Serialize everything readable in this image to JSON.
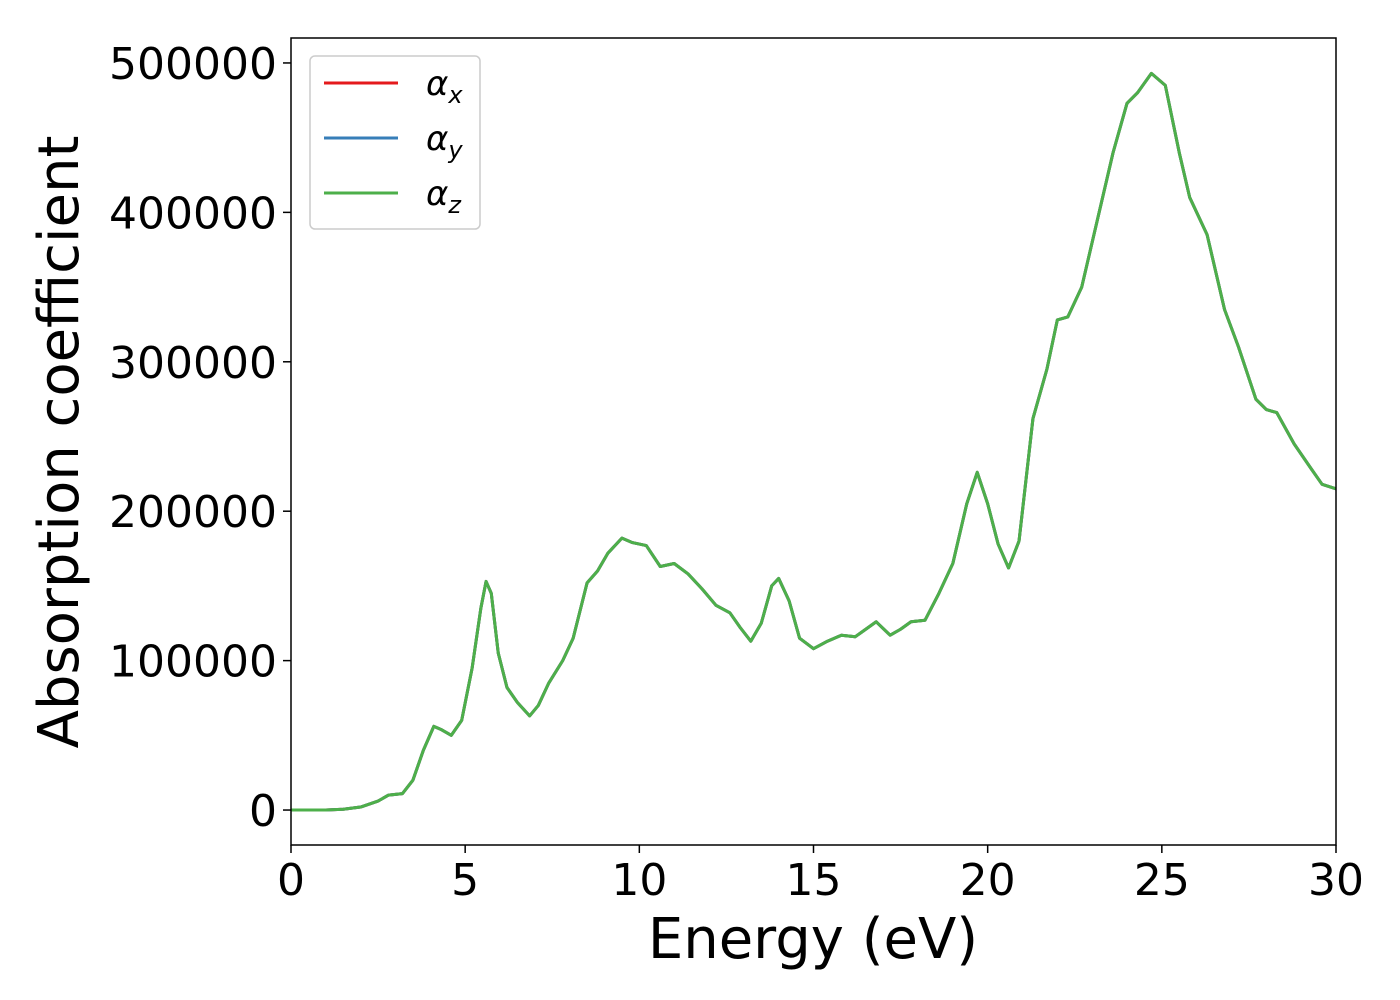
{
  "chart_data": {
    "type": "line",
    "xlabel": "Energy (eV)",
    "ylabel": "Absorption coefficient",
    "x": [
      0,
      1,
      1.5,
      2,
      2.5,
      2.8,
      3.2,
      3.5,
      3.8,
      4.1,
      4.3,
      4.6,
      4.9,
      5.2,
      5.45,
      5.6,
      5.75,
      5.95,
      6.2,
      6.5,
      6.85,
      7.1,
      7.4,
      7.8,
      8.1,
      8.5,
      8.8,
      9.1,
      9.5,
      9.8,
      10.2,
      10.6,
      11.0,
      11.4,
      11.8,
      12.2,
      12.6,
      12.9,
      13.2,
      13.5,
      13.8,
      14.0,
      14.3,
      14.6,
      15.0,
      15.4,
      15.8,
      16.2,
      16.5,
      16.8,
      17.2,
      17.5,
      17.8,
      18.2,
      18.6,
      19.0,
      19.4,
      19.7,
      20.0,
      20.3,
      20.6,
      20.9,
      21.3,
      21.7,
      22.0,
      22.3,
      22.7,
      23.1,
      23.6,
      24.0,
      24.3,
      24.7,
      25.1,
      25.5,
      25.8,
      26.3,
      26.8,
      27.2,
      27.7,
      28.0,
      28.3,
      28.8,
      29.3,
      29.6,
      30.0
    ],
    "series": [
      {
        "name": "αx",
        "color": "#e41a1c",
        "values": [
          0,
          0,
          500,
          2000,
          6000,
          10000,
          11000,
          20000,
          40000,
          56000,
          54000,
          50000,
          60000,
          95000,
          135000,
          153000,
          145000,
          105000,
          82000,
          72000,
          63000,
          70000,
          85000,
          100000,
          115000,
          152000,
          160000,
          172000,
          182000,
          179000,
          177000,
          163000,
          165000,
          158000,
          148000,
          137000,
          132000,
          122000,
          113000,
          125000,
          150000,
          155000,
          140000,
          115000,
          108000,
          113000,
          117000,
          116000,
          121000,
          126000,
          117000,
          121000,
          126000,
          127000,
          145000,
          165000,
          205000,
          226000,
          205000,
          178000,
          162000,
          180000,
          262000,
          295000,
          328000,
          330000,
          350000,
          390000,
          440000,
          473000,
          480000,
          493000,
          485000,
          440000,
          410000,
          385000,
          335000,
          310000,
          275000,
          268000,
          266000,
          245000,
          228000,
          218000,
          215000
        ]
      },
      {
        "name": "αy",
        "color": "#377eb8",
        "values": [
          0,
          0,
          500,
          2000,
          6000,
          10000,
          11000,
          20000,
          40000,
          56000,
          54000,
          50000,
          60000,
          95000,
          135000,
          153000,
          145000,
          105000,
          82000,
          72000,
          63000,
          70000,
          85000,
          100000,
          115000,
          152000,
          160000,
          172000,
          182000,
          179000,
          177000,
          163000,
          165000,
          158000,
          148000,
          137000,
          132000,
          122000,
          113000,
          125000,
          150000,
          155000,
          140000,
          115000,
          108000,
          113000,
          117000,
          116000,
          121000,
          126000,
          117000,
          121000,
          126000,
          127000,
          145000,
          165000,
          205000,
          226000,
          205000,
          178000,
          162000,
          180000,
          262000,
          295000,
          328000,
          330000,
          350000,
          390000,
          440000,
          473000,
          480000,
          493000,
          485000,
          440000,
          410000,
          385000,
          335000,
          310000,
          275000,
          268000,
          266000,
          245000,
          228000,
          218000,
          215000
        ]
      },
      {
        "name": "αz",
        "color": "#4daf4a",
        "values": [
          0,
          0,
          500,
          2000,
          6000,
          10000,
          11000,
          20000,
          40000,
          56000,
          54000,
          50000,
          60000,
          95000,
          135000,
          153000,
          145000,
          105000,
          82000,
          72000,
          63000,
          70000,
          85000,
          100000,
          115000,
          152000,
          160000,
          172000,
          182000,
          179000,
          177000,
          163000,
          165000,
          158000,
          148000,
          137000,
          132000,
          122000,
          113000,
          125000,
          150000,
          155000,
          140000,
          115000,
          108000,
          113000,
          117000,
          116000,
          121000,
          126000,
          117000,
          121000,
          126000,
          127000,
          145000,
          165000,
          205000,
          226000,
          205000,
          178000,
          162000,
          180000,
          262000,
          295000,
          328000,
          330000,
          350000,
          390000,
          440000,
          473000,
          480000,
          493000,
          485000,
          440000,
          410000,
          385000,
          335000,
          310000,
          275000,
          268000,
          266000,
          245000,
          228000,
          218000,
          215000
        ]
      }
    ],
    "xlim": [
      0,
      30
    ],
    "xticks": [
      0,
      5,
      10,
      15,
      20,
      25,
      30
    ],
    "ylim": [
      -23400,
      516700
    ],
    "yticks": [
      0,
      100000,
      200000,
      300000,
      400000,
      500000
    ],
    "legend": "upper left"
  }
}
